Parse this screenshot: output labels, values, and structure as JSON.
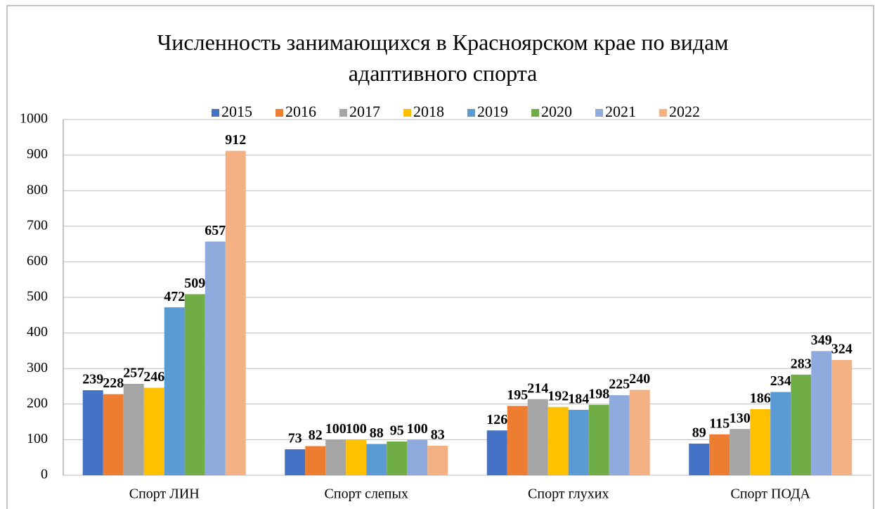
{
  "chart_data": {
    "type": "bar",
    "title": "Численность занимающихся в Красноярском крае по видам адаптивного спорта",
    "categories": [
      "Спорт ЛИН",
      "Спорт слепых",
      "Спорт глухих",
      "Спорт ПОДА"
    ],
    "series": [
      {
        "name": "2015",
        "color": "#4472c4",
        "values": [
          239,
          73,
          126,
          89
        ]
      },
      {
        "name": "2016",
        "color": "#ed7d31",
        "values": [
          228,
          82,
          195,
          115
        ]
      },
      {
        "name": "2017",
        "color": "#a5a5a5",
        "values": [
          257,
          100,
          214,
          130
        ]
      },
      {
        "name": "2018",
        "color": "#ffc000",
        "values": [
          246,
          100,
          192,
          186
        ]
      },
      {
        "name": "2019",
        "color": "#5b9bd5",
        "values": [
          472,
          88,
          184,
          234
        ]
      },
      {
        "name": "2020",
        "color": "#70ad47",
        "values": [
          509,
          95,
          198,
          283
        ]
      },
      {
        "name": "2021",
        "color": "#8faadc",
        "values": [
          657,
          100,
          225,
          349
        ]
      },
      {
        "name": "2022",
        "color": "#f4b183",
        "values": [
          912,
          83,
          240,
          324
        ]
      }
    ],
    "ylim": [
      0,
      1000
    ],
    "yticks": [
      0,
      100,
      200,
      300,
      400,
      500,
      600,
      700,
      800,
      900,
      1000
    ],
    "grid": true,
    "legend": "top"
  }
}
